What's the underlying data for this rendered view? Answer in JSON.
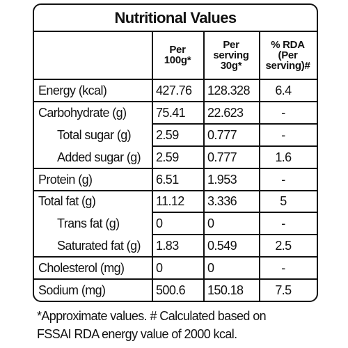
{
  "title": "Nutritional Values",
  "table": {
    "headers": [
      [
        "Per",
        "100g*"
      ],
      [
        "Per",
        "serving",
        "30g*"
      ],
      [
        "% RDA",
        "(Per",
        "serving)#"
      ]
    ],
    "rows": [
      {
        "label": "Energy (kcal)",
        "indent": false,
        "values": [
          "427.76",
          "128.328",
          "6.4"
        ]
      },
      {
        "label": "Carbohydrate (g)",
        "indent": false,
        "values": [
          "75.41",
          "22.623",
          "-"
        ]
      },
      {
        "label": "Total sugar (g)",
        "indent": true,
        "values": [
          "2.59",
          "0.777",
          "-"
        ]
      },
      {
        "label": "Added sugar (g)",
        "indent": true,
        "values": [
          "2.59",
          "0.777",
          "1.6"
        ]
      },
      {
        "label": "Protein (g)",
        "indent": false,
        "values": [
          "6.51",
          "1.953",
          "-"
        ]
      },
      {
        "label": "Total fat (g)",
        "indent": false,
        "values": [
          "11.12",
          "3.336",
          "5"
        ]
      },
      {
        "label": "Trans fat (g)",
        "indent": true,
        "values": [
          "0",
          "0",
          "-"
        ]
      },
      {
        "label": "Saturated fat (g)",
        "indent": true,
        "values": [
          "1.83",
          "0.549",
          "2.5"
        ]
      },
      {
        "label": "Cholesterol (mg)",
        "indent": false,
        "values": [
          "0",
          "0",
          "-"
        ]
      },
      {
        "label": "Sodium (mg)",
        "indent": false,
        "values": [
          "500.6",
          "150.18",
          "7.5"
        ]
      }
    ]
  },
  "footnote": [
    "*Approximate values. # Calculated based on",
    "FSSAI RDA energy value of 2000 kcal."
  ]
}
